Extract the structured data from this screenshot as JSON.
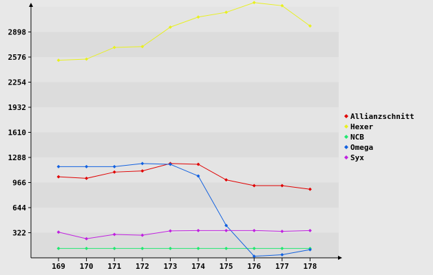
{
  "chart_data": {
    "type": "line",
    "title": "",
    "xlabel": "",
    "ylabel": "",
    "categories": [
      "169",
      "170",
      "171",
      "172",
      "173",
      "174",
      "175",
      "176",
      "177",
      "178"
    ],
    "yticks": [
      "322",
      "644",
      "966",
      "1288",
      "1610",
      "1932",
      "2254",
      "2576",
      "2898"
    ],
    "ylim": [
      0,
      3220
    ],
    "grid": "horizontal bands",
    "legend_position": "right",
    "series": [
      {
        "name": "Allianzschnitt",
        "color": "#e00000",
        "values": [
          1040,
          1020,
          1100,
          1115,
          1210,
          1200,
          1000,
          926,
          926,
          880
        ]
      },
      {
        "name": "Hexer",
        "color": "#e8f020",
        "values": [
          2535,
          2550,
          2700,
          2710,
          2960,
          3090,
          3150,
          3275,
          3235,
          2975
        ]
      },
      {
        "name": "NCB",
        "color": "#20e870",
        "values": [
          120,
          120,
          120,
          120,
          120,
          120,
          120,
          120,
          120,
          120
        ]
      },
      {
        "name": "Omega",
        "color": "#1060e0",
        "values": [
          1170,
          1170,
          1170,
          1210,
          1200,
          1050,
          415,
          20,
          40,
          105
        ]
      },
      {
        "name": "Syx",
        "color": "#c020e0",
        "values": [
          330,
          245,
          300,
          290,
          345,
          350,
          350,
          350,
          340,
          350
        ]
      }
    ]
  }
}
